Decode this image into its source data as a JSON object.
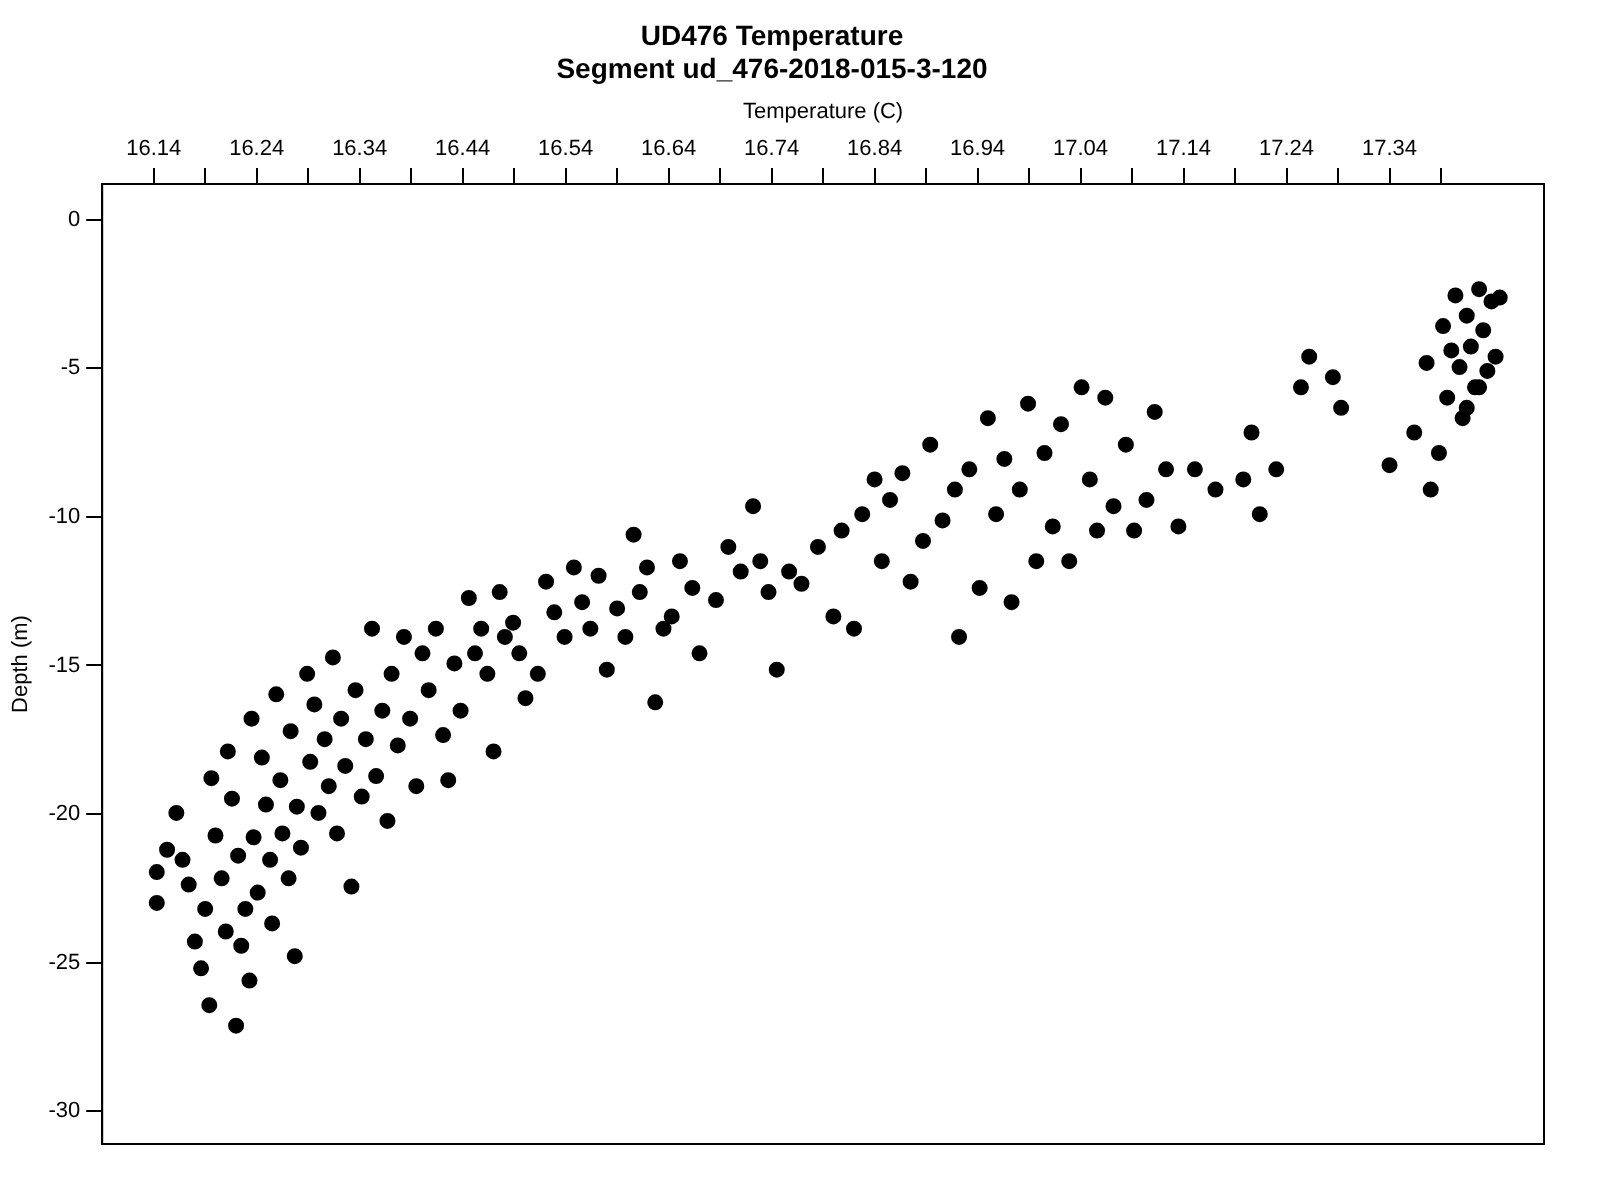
{
  "chart_data": {
    "type": "scatter",
    "title": "UD476 Temperature",
    "subtitle": "Segment ud_476-2018-015-3-120",
    "xlabel": "Temperature (C)",
    "ylabel": "Depth (m)",
    "xlim": [
      16.09,
      17.49
    ],
    "ylim": [
      -31.1,
      1.2
    ],
    "xticks": [
      16.14,
      {
        "value": 16.19,
        "label": null
      },
      16.24,
      {
        "value": 16.29,
        "label": null
      },
      16.34,
      {
        "value": 16.39,
        "label": null
      },
      16.44,
      {
        "value": 16.49,
        "label": null
      },
      16.54,
      {
        "value": 16.59,
        "label": null
      },
      16.64,
      {
        "value": 16.69,
        "label": null
      },
      16.74,
      {
        "value": 16.79,
        "label": null
      },
      16.84,
      {
        "value": 16.89,
        "label": null
      },
      16.94,
      {
        "value": 16.99,
        "label": null
      },
      17.04,
      {
        "value": 17.09,
        "label": null
      },
      17.14,
      {
        "value": 17.19,
        "label": null
      },
      17.24,
      {
        "value": 17.29,
        "label": null
      },
      17.34,
      {
        "value": 17.39,
        "label": null
      }
    ],
    "yticks": [
      0,
      -5,
      -10,
      -15,
      -20,
      -25,
      -30
    ],
    "grid": false,
    "legend": false,
    "marker": "circle",
    "series": [
      {
        "color": "#000000",
        "x": [
          16.143,
          16.143,
          16.153,
          16.162,
          16.168,
          16.174,
          16.18,
          16.186,
          16.19,
          16.194,
          16.196,
          16.2,
          16.206,
          16.21,
          16.212,
          16.216,
          16.22,
          16.222,
          16.225,
          16.229,
          16.233,
          16.235,
          16.237,
          16.241,
          16.245,
          16.249,
          16.253,
          16.255,
          16.259,
          16.263,
          16.265,
          16.271,
          16.273,
          16.277,
          16.279,
          16.283,
          16.289,
          16.292,
          16.296,
          16.3,
          16.306,
          16.31,
          16.314,
          16.318,
          16.322,
          16.326,
          16.332,
          16.336,
          16.342,
          16.346,
          16.352,
          16.356,
          16.362,
          16.367,
          16.371,
          16.377,
          16.383,
          16.389,
          16.395,
          16.401,
          16.407,
          16.414,
          16.421,
          16.426,
          16.432,
          16.438,
          16.446,
          16.452,
          16.458,
          16.464,
          16.47,
          16.476,
          16.481,
          16.489,
          16.495,
          16.501,
          16.513,
          16.521,
          16.529,
          16.539,
          16.548,
          16.556,
          16.564,
          16.572,
          16.58,
          16.59,
          16.598,
          16.606,
          16.612,
          16.619,
          16.627,
          16.635,
          16.643,
          16.651,
          16.663,
          16.67,
          16.686,
          16.698,
          16.71,
          16.722,
          16.729,
          16.737,
          16.745,
          16.757,
          16.769,
          16.785,
          16.8,
          16.808,
          16.82,
          16.828,
          16.84,
          16.847,
          16.855,
          16.867,
          16.875,
          16.887,
          16.894,
          16.906,
          16.918,
          16.922,
          16.932,
          16.942,
          16.95,
          16.958,
          16.966,
          16.973,
          16.981,
          16.989,
          16.997,
          17.005,
          17.013,
          17.021,
          17.029,
          17.041,
          17.049,
          17.056,
          17.064,
          17.072,
          17.084,
          17.092,
          17.104,
          17.112,
          17.123,
          17.135,
          17.151,
          17.171,
          17.198,
          17.206,
          17.214,
          17.23,
          17.254,
          17.262,
          17.285,
          17.293,
          17.34,
          17.364,
          17.38,
          17.376,
          17.388,
          17.392,
          17.396,
          17.404,
          17.408,
          17.411,
          17.415,
          17.419,
          17.423,
          17.427,
          17.431,
          17.435,
          17.439,
          17.443,
          17.447,
          17.4,
          17.415,
          17.427
        ],
        "values": [
          -21.95,
          -22.99,
          -21.2,
          -19.96,
          -21.54,
          -22.37,
          -24.29,
          -25.19,
          -23.19,
          -26.43,
          -18.79,
          -20.72,
          -22.16,
          -23.95,
          -17.89,
          -19.48,
          -27.12,
          -21.4,
          -24.43,
          -23.19,
          -25.6,
          -16.79,
          -20.78,
          -22.64,
          -18.1,
          -19.68,
          -21.54,
          -23.68,
          -15.97,
          -18.86,
          -20.65,
          -22.16,
          -17.21,
          -24.78,
          -19.75,
          -21.13,
          -15.28,
          -18.24,
          -16.31,
          -19.96,
          -17.48,
          -19.06,
          -14.73,
          -20.65,
          -16.79,
          -18.38,
          -22.44,
          -15.83,
          -19.41,
          -17.48,
          -13.76,
          -18.72,
          -16.52,
          -20.23,
          -15.28,
          -17.69,
          -14.04,
          -16.79,
          -19.06,
          -14.59,
          -15.83,
          -13.76,
          -17.34,
          -18.86,
          -14.93,
          -16.52,
          -12.73,
          -14.59,
          -13.76,
          -15.28,
          -17.89,
          -12.53,
          -14.04,
          -13.56,
          -14.59,
          -16.1,
          -15.28,
          -12.18,
          -13.21,
          -14.04,
          -11.7,
          -12.87,
          -13.76,
          -11.98,
          -15.14,
          -13.08,
          -14.04,
          -10.6,
          -12.53,
          -11.7,
          -16.24,
          -13.76,
          -13.35,
          -11.49,
          -12.39,
          -14.59,
          -12.8,
          -11.01,
          -11.84,
          -9.64,
          -11.49,
          -12.53,
          -15.14,
          -11.84,
          -12.25,
          -11.01,
          -13.35,
          -10.46,
          -13.76,
          -9.91,
          -8.74,
          -11.49,
          -9.43,
          -8.53,
          -12.18,
          -10.81,
          -7.57,
          -10.12,
          -9.08,
          -14.04,
          -8.4,
          -12.39,
          -6.68,
          -9.91,
          -8.05,
          -12.87,
          -9.08,
          -6.19,
          -11.49,
          -7.85,
          -10.32,
          -6.88,
          -11.49,
          -5.64,
          -8.74,
          -10.46,
          -5.99,
          -9.64,
          -7.57,
          -10.46,
          -9.43,
          -6.47,
          -8.4,
          -10.32,
          -8.4,
          -9.08,
          -8.74,
          -7.16,
          -9.91,
          -8.4,
          -5.64,
          -4.61,
          -5.3,
          -6.33,
          -8.26,
          -7.16,
          -9.08,
          -4.82,
          -7.85,
          -3.58,
          -5.99,
          -2.55,
          -4.96,
          -6.68,
          -3.23,
          -4.27,
          -5.64,
          -2.34,
          -3.72,
          -5.09,
          -2.75,
          -4.61,
          -2.62,
          -4.4,
          -6.33,
          -5.64
        ]
      }
    ]
  }
}
